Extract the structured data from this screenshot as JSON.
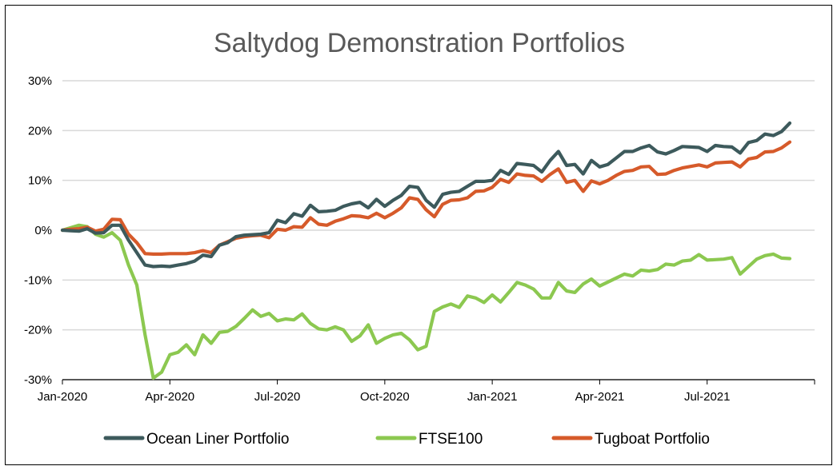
{
  "colors": {
    "ocean": "#3d5a5c",
    "ftse": "#8cc850",
    "tugboat": "#d65a2a",
    "grid": "#d9d9d9",
    "axis": "#000000"
  },
  "chart_data": {
    "type": "line",
    "title": "Saltydog Demonstration Portfolios",
    "xlabel": "",
    "ylabel": "",
    "ylim": [
      -30,
      30
    ],
    "xlim": [
      0,
      91
    ],
    "y_ticks": [
      {
        "value": 30,
        "label": "30%"
      },
      {
        "value": 20,
        "label": "20%"
      },
      {
        "value": 10,
        "label": "10%"
      },
      {
        "value": 0,
        "label": "0%"
      },
      {
        "value": -10,
        "label": "-10%"
      },
      {
        "value": -20,
        "label": "-20%"
      },
      {
        "value": -30,
        "label": "-30%"
      }
    ],
    "x_ticks": [
      {
        "value": 0,
        "label": "Jan-2020"
      },
      {
        "value": 13,
        "label": "Apr-2020"
      },
      {
        "value": 26,
        "label": "Jul-2020"
      },
      {
        "value": 39,
        "label": "Oct-2020"
      },
      {
        "value": 52,
        "label": "Jan-2021"
      },
      {
        "value": 65,
        "label": "Apr-2021"
      },
      {
        "value": 78,
        "label": "Jul-2021"
      }
    ],
    "grid": true,
    "legend_position": "bottom",
    "series": [
      {
        "name": "Ocean Liner Portfolio",
        "color_key": "ocean",
        "values": [
          0,
          -0.1,
          -0.2,
          0.3,
          -0.6,
          -0.5,
          1,
          1,
          -2,
          -4.5,
          -7,
          -7.3,
          -7.2,
          -7.3,
          -7,
          -6.7,
          -6.2,
          -5,
          -5.3,
          -3,
          -2.5,
          -1.3,
          -1,
          -0.9,
          -0.8,
          -0.5,
          2,
          1.5,
          3.3,
          2.8,
          5,
          3.7,
          3.8,
          4,
          4.8,
          5.3,
          5.6,
          4.5,
          6.2,
          4.8,
          6,
          7,
          8.8,
          8.6,
          6,
          4.6,
          7.2,
          7.6,
          7.8,
          8.8,
          9.8,
          9.8,
          10,
          12,
          11.2,
          13.4,
          13.2,
          13,
          11.7,
          14,
          15.8,
          13,
          13.2,
          11.3,
          14,
          12.7,
          13.2,
          14.5,
          15.8,
          15.8,
          16.5,
          17,
          15.7,
          15.3,
          16,
          16.8,
          16.7,
          16.6,
          15.8,
          17,
          16.8,
          16.7,
          15.5,
          17.6,
          18,
          19.3,
          19,
          19.8,
          21.5
        ]
      },
      {
        "name": "FTSE100",
        "color_key": "ftse",
        "values": [
          0,
          0.5,
          1,
          0.7,
          -0.8,
          -1.4,
          -0.5,
          -2,
          -7,
          -11,
          -21,
          -29.7,
          -28.5,
          -25,
          -24.5,
          -23,
          -25,
          -21,
          -22.7,
          -20.5,
          -20.3,
          -19.3,
          -17.7,
          -16,
          -17.3,
          -16.7,
          -18.2,
          -17.8,
          -18,
          -16.8,
          -18.7,
          -19.8,
          -20,
          -19.4,
          -20,
          -22.3,
          -21.2,
          -19,
          -22.7,
          -21.7,
          -21,
          -20.7,
          -22,
          -24,
          -23.3,
          -16.3,
          -15.4,
          -14.8,
          -15.5,
          -13.2,
          -13.6,
          -14.5,
          -13,
          -14.4,
          -12.5,
          -10.5,
          -11,
          -11.8,
          -13.6,
          -13.6,
          -10.5,
          -12.2,
          -12.5,
          -10.8,
          -9.8,
          -11.2,
          -10.4,
          -9.6,
          -8.8,
          -9.2,
          -8,
          -8.2,
          -7.9,
          -6.8,
          -7,
          -6.2,
          -6,
          -4.9,
          -6,
          -5.9,
          -5.8,
          -5.5,
          -8.8,
          -7.3,
          -5.8,
          -5.1,
          -4.8,
          -5.6,
          -5.7
        ]
      },
      {
        "name": "Tugboat Portfolio",
        "color_key": "tugboat",
        "values": [
          0,
          0.2,
          0.3,
          0.6,
          -0.2,
          0.2,
          2.2,
          2.1,
          -0.8,
          -2.5,
          -4.7,
          -4.8,
          -4.8,
          -4.7,
          -4.7,
          -4.7,
          -4.5,
          -4.1,
          -4.5,
          -3,
          -2.3,
          -1.6,
          -1.3,
          -1.1,
          -1,
          -1.5,
          0.2,
          0,
          0.7,
          0.6,
          2.5,
          1.2,
          1,
          1.8,
          2.3,
          2.9,
          2.8,
          2.5,
          3.4,
          2.5,
          3.4,
          4.5,
          6.5,
          6.2,
          4.1,
          2.7,
          5.2,
          6,
          6.1,
          6.5,
          7.8,
          7.9,
          8.6,
          10.2,
          9.6,
          11.3,
          11,
          10.9,
          9.8,
          11.2,
          12.3,
          9.6,
          10,
          7.8,
          9.9,
          9.3,
          10,
          11,
          11.8,
          12,
          12.7,
          12.8,
          11.2,
          11.3,
          12,
          12.5,
          12.8,
          13.1,
          12.7,
          13.5,
          13.6,
          13.7,
          12.7,
          14.3,
          14.6,
          15.7,
          15.8,
          16.5,
          17.7
        ]
      }
    ]
  }
}
